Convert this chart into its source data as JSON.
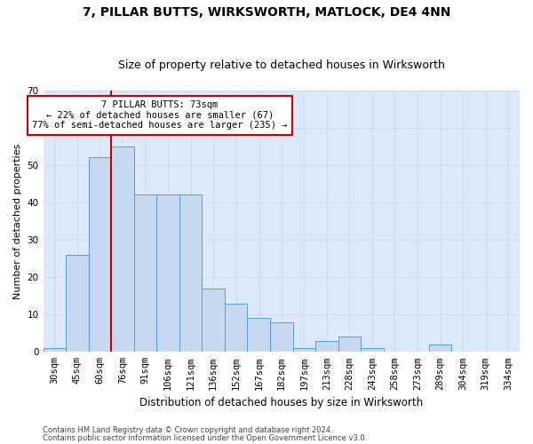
{
  "title1": "7, PILLAR BUTTS, WIRKSWORTH, MATLOCK, DE4 4NN",
  "title2": "Size of property relative to detached houses in Wirksworth",
  "xlabel": "Distribution of detached houses by size in Wirksworth",
  "ylabel": "Number of detached properties",
  "bar_labels": [
    "30sqm",
    "45sqm",
    "60sqm",
    "76sqm",
    "91sqm",
    "106sqm",
    "121sqm",
    "136sqm",
    "152sqm",
    "167sqm",
    "182sqm",
    "197sqm",
    "213sqm",
    "228sqm",
    "243sqm",
    "258sqm",
    "273sqm",
    "289sqm",
    "304sqm",
    "319sqm",
    "334sqm"
  ],
  "bar_values": [
    1,
    26,
    52,
    55,
    42,
    42,
    42,
    17,
    13,
    9,
    8,
    1,
    3,
    4,
    1,
    0,
    0,
    2,
    0,
    0,
    0
  ],
  "bar_color": "#c6d9f1",
  "bar_edge_color": "#5b9bd5",
  "vline_index": 3,
  "vline_color": "#cc0000",
  "annotation_text": "7 PILLAR BUTTS: 73sqm\n← 22% of detached houses are smaller (67)\n77% of semi-detached houses are larger (235) →",
  "annotation_box_color": "white",
  "annotation_box_edge": "#cc0000",
  "ylim": [
    0,
    70
  ],
  "yticks": [
    0,
    10,
    20,
    30,
    40,
    50,
    60,
    70
  ],
  "grid_color": "#d0d8e8",
  "bg_color": "#dce9f8",
  "footer1": "Contains HM Land Registry data © Crown copyright and database right 2024.",
  "footer2": "Contains public sector information licensed under the Open Government Licence v3.0.",
  "title1_fontsize": 10,
  "title2_fontsize": 9,
  "xlabel_fontsize": 8.5,
  "ylabel_fontsize": 8,
  "tick_fontsize": 7.5,
  "annotation_fontsize": 7.5,
  "footer_fontsize": 6
}
